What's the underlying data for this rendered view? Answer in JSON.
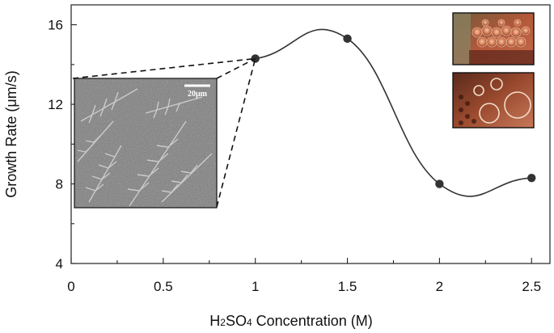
{
  "chart_data": {
    "type": "line",
    "title": "",
    "xlabel": {
      "prefix": "H",
      "sub1": "2",
      "mid": "SO",
      "sub2": "4",
      "suffix": " Concentration (M)"
    },
    "ylabel": "Growth Rate (μm/s)",
    "xlim": [
      0,
      2.6
    ],
    "ylim": [
      4,
      17
    ],
    "x_ticks": [
      0,
      0.5,
      1,
      1.5,
      2,
      2.5
    ],
    "x_tick_labels": [
      "0",
      "0.5",
      "1",
      "1.5",
      "2",
      "2.5"
    ],
    "y_ticks": [
      4,
      8,
      12,
      16
    ],
    "y_tick_labels": [
      "4",
      "8",
      "12",
      "16"
    ],
    "series": [
      {
        "x": [
          1,
          1.5,
          2,
          2.5
        ],
        "y": [
          14.3,
          15.3,
          8.0,
          8.3
        ],
        "marker": "circle",
        "line": "smooth",
        "color": "#333333"
      }
    ],
    "grid": false,
    "legend": "none",
    "insets": [
      {
        "kind": "sem-micrograph",
        "points_to_x": 1,
        "points_to_y": 14.3,
        "scale_bar_label": "20μm"
      },
      {
        "kind": "optical-photo-crystals"
      },
      {
        "kind": "optical-photo-bubbles"
      }
    ]
  }
}
